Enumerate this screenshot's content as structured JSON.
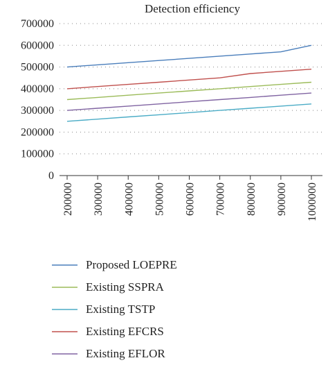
{
  "chart_data": {
    "type": "line",
    "title": "Detection efficiency",
    "xlabel": "",
    "ylabel": "",
    "x": [
      200000,
      300000,
      400000,
      500000,
      600000,
      700000,
      800000,
      900000,
      1000000
    ],
    "x_tick_labels": [
      "200000",
      "300000",
      "400000",
      "500000",
      "600000",
      "700000",
      "800000",
      "900000",
      "1000000"
    ],
    "ylim": [
      0,
      700000
    ],
    "y_ticks": [
      0,
      100000,
      200000,
      300000,
      400000,
      500000,
      600000,
      700000
    ],
    "y_tick_labels": [
      "0",
      "100000",
      "200000",
      "300000",
      "400000",
      "500000",
      "600000",
      "700000"
    ],
    "grid": true,
    "legend_position": "bottom",
    "series": [
      {
        "name": "Proposed LOEPRE",
        "color": "#4a7ebb",
        "values": [
          500000,
          510000,
          520000,
          530000,
          540000,
          550000,
          560000,
          570000,
          600000
        ]
      },
      {
        "name": "Existing SSPRA",
        "color": "#9bbb59",
        "values": [
          350000,
          360000,
          370000,
          380000,
          390000,
          400000,
          410000,
          420000,
          430000
        ]
      },
      {
        "name": "Existing TSTP",
        "color": "#4bacc6",
        "values": [
          250000,
          260000,
          270000,
          280000,
          290000,
          300000,
          310000,
          320000,
          330000
        ]
      },
      {
        "name": "Existing EFCRS",
        "color": "#c0504d",
        "values": [
          400000,
          410000,
          420000,
          430000,
          440000,
          450000,
          470000,
          480000,
          490000
        ]
      },
      {
        "name": "Existing EFLOR",
        "color": "#8064a2",
        "values": [
          300000,
          310000,
          320000,
          330000,
          340000,
          350000,
          360000,
          370000,
          380000
        ]
      }
    ]
  }
}
